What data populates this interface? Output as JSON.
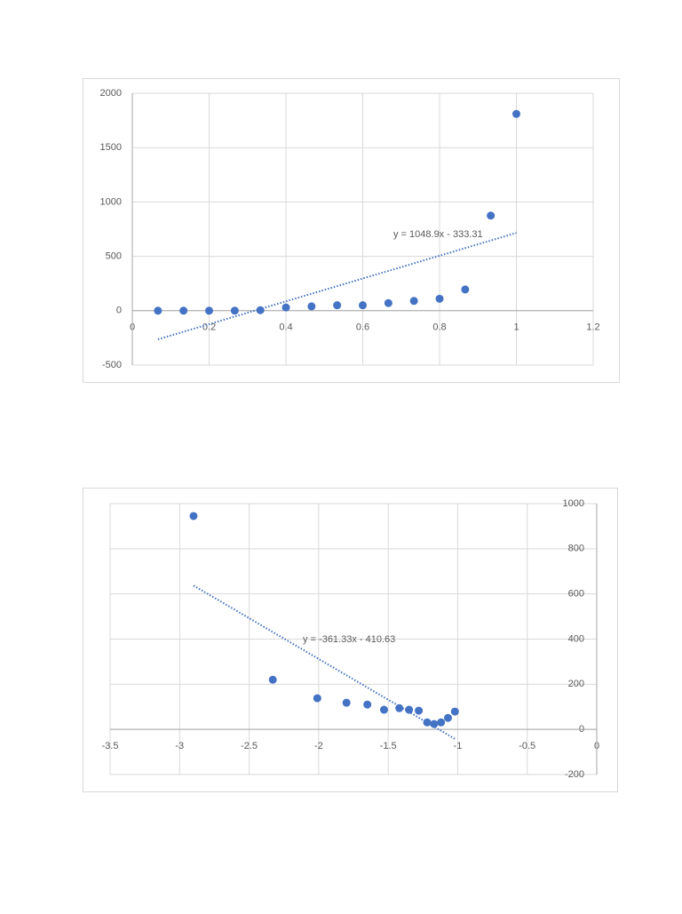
{
  "chart_data": [
    {
      "type": "scatter",
      "x": [
        0.0667,
        0.1333,
        0.2,
        0.2667,
        0.3333,
        0.4,
        0.4667,
        0.5333,
        0.6,
        0.6667,
        0.7333,
        0.8,
        0.8667,
        0.9333,
        1.0
      ],
      "series": [
        {
          "color": "#4472c4",
          "values": [
            0,
            0,
            0,
            0,
            5,
            30,
            40,
            50,
            50,
            70,
            90,
            110,
            195,
            875,
            1810
          ]
        }
      ],
      "xlim": [
        0,
        1.2
      ],
      "xticks": [
        0,
        0.2,
        0.4,
        0.6,
        0.8,
        1,
        1.2
      ],
      "ylim": [
        -500,
        2000
      ],
      "yticks": [
        -500,
        0,
        500,
        1000,
        1500,
        2000
      ],
      "y_axis_side": "left",
      "grid": true,
      "trendline": {
        "slope": 1048.9,
        "intercept": -333.31,
        "label": "y = 1048.9x - 333.31",
        "color": "#4472c4"
      }
    },
    {
      "type": "scatter",
      "x": [
        -2.9,
        -2.33,
        -2.01,
        -1.8,
        -1.65,
        -1.53,
        -1.42,
        -1.35,
        -1.28,
        -1.22,
        -1.17,
        -1.12,
        -1.07,
        -1.02
      ],
      "series": [
        {
          "color": "#4472c4",
          "values": [
            945,
            220,
            138,
            118,
            110,
            87,
            94,
            87,
            83,
            31,
            24,
            31,
            51,
            79
          ]
        }
      ],
      "xlim": [
        -3.5,
        0
      ],
      "xticks": [
        -3.5,
        -3,
        -2.5,
        -2,
        -1.5,
        -1,
        -0.5,
        0
      ],
      "ylim": [
        -200,
        1000
      ],
      "yticks": [
        -200,
        0,
        200,
        400,
        600,
        800,
        1000
      ],
      "y_axis_side": "right",
      "grid": true,
      "trendline": {
        "slope": -361.33,
        "intercept": -410.63,
        "label": "y = -361.33x - 410.63",
        "color": "#4472c4"
      }
    }
  ]
}
